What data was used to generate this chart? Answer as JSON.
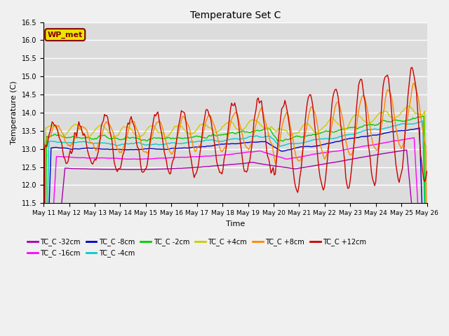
{
  "title": "Temperature Set C",
  "xlabel": "Time",
  "ylabel": "Temperature (C)",
  "ylim": [
    11.5,
    16.5
  ],
  "plot_bg": "#dcdcdc",
  "fig_bg": "#f0f0f0",
  "series_order": [
    "TC_C -32cm",
    "TC_C -16cm",
    "TC_C -8cm",
    "TC_C -4cm",
    "TC_C -2cm",
    "TC_C +4cm",
    "TC_C +8cm",
    "TC_C +12cm"
  ],
  "colors": {
    "TC_C -32cm": "#aa00aa",
    "TC_C -16cm": "#ff00ff",
    "TC_C -8cm": "#0000cc",
    "TC_C -4cm": "#00cccc",
    "TC_C -2cm": "#00cc00",
    "TC_C +4cm": "#cccc00",
    "TC_C +8cm": "#ff8800",
    "TC_C +12cm": "#cc0000"
  },
  "lw": 1.0,
  "x_tick_labels": [
    "May 11",
    "May 12",
    "May 13",
    "May 14",
    "May 15",
    "May 16",
    "May 17",
    "May 18",
    "May 19",
    "May 20",
    "May 21",
    "May 22",
    "May 23",
    "May 24",
    "May 25",
    "May 26"
  ],
  "wpmet_facecolor": "#e8e800",
  "wpmet_edgecolor": "#8b0000",
  "wpmet_text": "WP_met"
}
